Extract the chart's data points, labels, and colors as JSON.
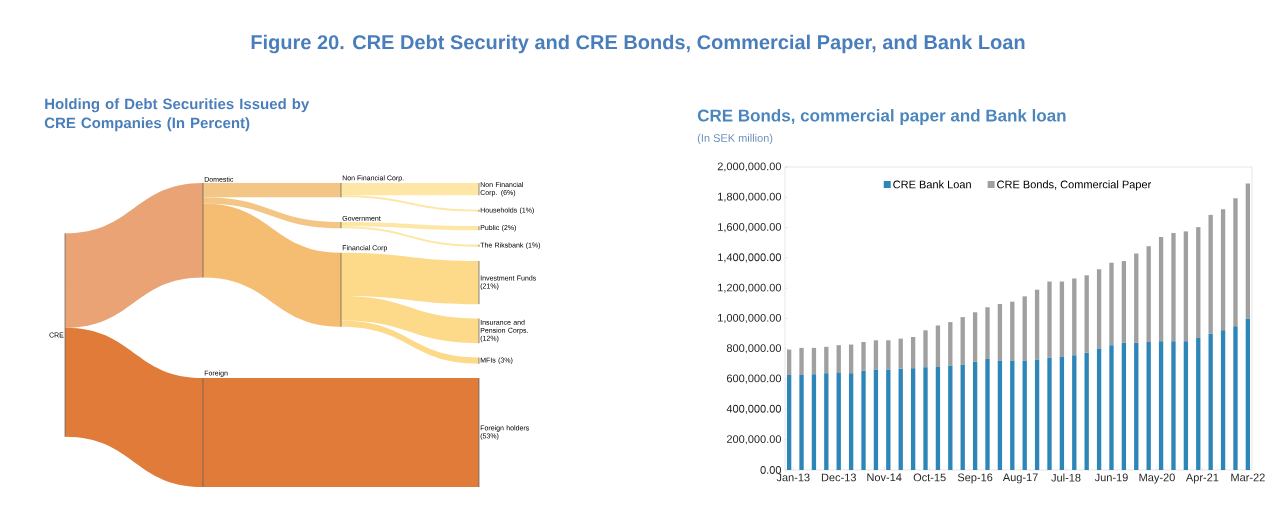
{
  "chart_data": [
    {
      "type": "other",
      "title": "Figure 20. CRE Debt Security and CRE Bonds, Commercial Paper, and Bank Loan",
      "subtitle": "Holding of Debt Securities Issued by CRE Companies (In Percent)",
      "categories": [
        "Non Financial Corp.",
        "Households",
        "Public",
        "The Riksbank",
        "Investment Funds",
        "Insurance and Pension Corps.",
        "MFIs",
        "Foreign holders"
      ],
      "value_labels": [
        "(6%)",
        "(1%)",
        "(2%)",
        "(1%)",
        "(21%)",
        "(12%)",
        "(3%)",
        "(53%)"
      ],
      "colors": [
        "#fde6a6",
        "#fde6a6",
        "#fde6a6",
        "#fde6a6",
        "#fcda8a",
        "#fcda8a",
        "#fcda8a",
        "#e07b39"
      ],
      "values": [
        6,
        1,
        2,
        1,
        21,
        12,
        3,
        53
      ],
      "annotations": [
        "CRE",
        "Domestic",
        "Foreign",
        "Non Financial Corp.",
        "Government",
        "Financial Corp"
      ]
    },
    {
      "type": "bar",
      "stacked": true,
      "title": "CRE Bonds, commercial paper and Bank loan",
      "subtitle": "(In SEK million)",
      "legend": "top",
      "x": [
        "2012-12",
        "2013-03",
        "2013-06",
        "2013-09",
        "2013-12",
        "2014-03",
        "2014-06",
        "2014-09",
        "2014-12",
        "2015-03",
        "2015-06",
        "2015-09",
        "2015-12",
        "2016-03",
        "2016-06",
        "2016-09",
        "2016-12",
        "2017-03",
        "2017-06",
        "2017-09",
        "2017-12",
        "2018-03",
        "2018-06",
        "2018-09",
        "2018-12",
        "2019-03",
        "2019-06",
        "2019-09",
        "2019-12",
        "2020-03",
        "2020-06",
        "2020-09",
        "2020-12",
        "2021-03",
        "2021-06",
        "2021-09",
        "2021-12",
        "2022-03"
      ],
      "xlim": [
        "2012-11",
        "2022-04"
      ],
      "xticks": [
        {
          "value": "2013-01",
          "label": "Jan-13"
        },
        {
          "value": "2013-12",
          "label": "Dec-13"
        },
        {
          "value": "2014-11",
          "label": "Nov-14"
        },
        {
          "value": "2015-10",
          "label": "Oct-15"
        },
        {
          "value": "2016-09",
          "label": "Sep-16"
        },
        {
          "value": "2017-08",
          "label": "Aug-17"
        },
        {
          "value": "2018-07",
          "label": "Jul-18"
        },
        {
          "value": "2019-06",
          "label": "Jun-19"
        },
        {
          "value": "2020-05",
          "label": "May-20"
        },
        {
          "value": "2021-04",
          "label": "Apr-21"
        },
        {
          "value": "2022-03",
          "label": "Mar-22"
        }
      ],
      "ylim": [
        0,
        2000000
      ],
      "yticks": [
        {
          "value": 0,
          "label": "0.00"
        },
        {
          "value": 200000,
          "label": "200,000.00"
        },
        {
          "value": 400000,
          "label": "400,000.00"
        },
        {
          "value": 600000,
          "label": "600,000.00"
        },
        {
          "value": 800000,
          "label": "800,000.00"
        },
        {
          "value": 1000000,
          "label": "1,000,000.00"
        },
        {
          "value": 1200000,
          "label": "1,200,000.00"
        },
        {
          "value": 1400000,
          "label": "1,400,000.00"
        },
        {
          "value": 1600000,
          "label": "1,600,000.00"
        },
        {
          "value": 1800000,
          "label": "1,800,000.00"
        },
        {
          "value": 2000000,
          "label": "2,000,000.00"
        }
      ],
      "series": [
        {
          "name": "CRE Bank Loan",
          "color": "#2e86b8",
          "values": [
            627000,
            627000,
            632000,
            638000,
            643000,
            638000,
            654000,
            664000,
            664000,
            669000,
            671000,
            678000,
            680000,
            688000,
            697000,
            715000,
            732000,
            721000,
            721000,
            721000,
            730000,
            741000,
            747000,
            758000,
            773000,
            802000,
            824000,
            839000,
            839000,
            845000,
            850000,
            850000,
            850000,
            871000,
            900000,
            922000,
            948000,
            998000
          ]
        },
        {
          "name": "CRE Bonds, Commercial Paper",
          "color": "#a0a0a0",
          "values": [
            168000,
            179000,
            174000,
            175000,
            181000,
            190000,
            191000,
            192000,
            192000,
            198000,
            207000,
            244000,
            274000,
            288000,
            312000,
            326000,
            342000,
            375000,
            390000,
            425000,
            460000,
            503000,
            497000,
            506000,
            512000,
            523000,
            544000,
            540000,
            590000,
            632000,
            688000,
            714000,
            725000,
            732000,
            784000,
            799000,
            845000,
            893000
          ]
        }
      ]
    }
  ]
}
